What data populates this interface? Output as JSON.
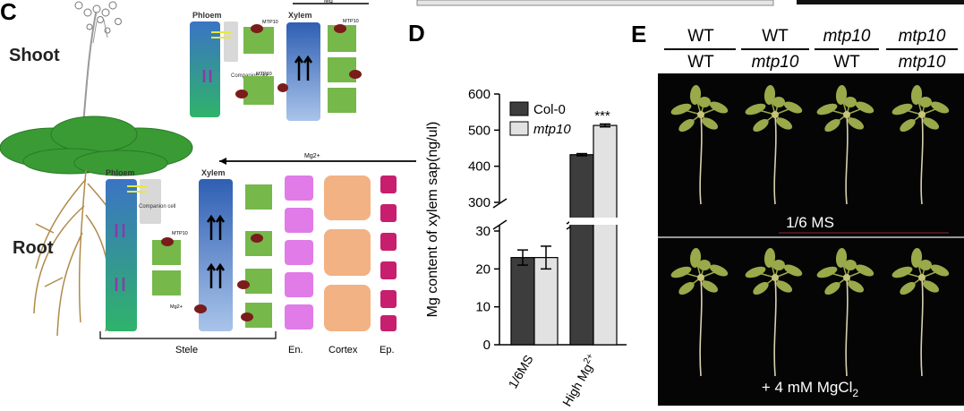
{
  "panel_c": {
    "letter": "C",
    "shoot_label": "Shoot",
    "root_label": "Root",
    "top_mg_label": "Mg",
    "shoot_phloem_label": "Phloem",
    "shoot_xylem_label": "Xylem",
    "shoot_companion_label": "Companion cell",
    "root_mg_label": "Mg2+",
    "root_phloem_label": "Phloem",
    "root_xylem_label": "Xylem",
    "root_companion_label": "Companion cell",
    "mtp10_label": "MTP10",
    "mg2_label": "Mg2+",
    "stele_label": "Stele",
    "en_label": "En.",
    "cortex_label": "Cortex",
    "ep_label": "Ep."
  },
  "panel_d": {
    "letter": "D",
    "significance": "***",
    "x_tick_1": "1/6MS",
    "x_tick_2_base": "High Mg",
    "x_tick_2_sup": "2+"
  },
  "chart_data": {
    "type": "bar",
    "ylabel": "Mg  content of xylem sap(ng/ul)",
    "axis_break": [
      30,
      300
    ],
    "y_ticks_lower": [
      0,
      10,
      20,
      30
    ],
    "y_ticks_upper": [
      300,
      400,
      500,
      600
    ],
    "categories": [
      "1/6MS",
      "High Mg2+"
    ],
    "series": [
      {
        "name": "Col-0",
        "values": [
          23,
          432
        ],
        "errors": [
          2,
          3
        ],
        "color": "#3d3d3d"
      },
      {
        "name": "mtp10",
        "values": [
          23,
          513
        ],
        "errors": [
          3,
          4
        ],
        "color": "#e2e2e2"
      }
    ],
    "legend_position": "top-left",
    "annotation": "***"
  },
  "panel_e": {
    "letter": "E",
    "genotypes": [
      {
        "top": "WT",
        "bottom": "WT"
      },
      {
        "top": "WT",
        "bottom": "mtp10"
      },
      {
        "top": "mtp10",
        "bottom": "WT"
      },
      {
        "top": "mtp10",
        "bottom": "mtp10"
      }
    ],
    "condition_1": "1/6 MS",
    "condition_2_base": "+ 4 mM MgCl",
    "condition_2_sub": "2",
    "background": "#050505",
    "plant_color": "#9aa94a"
  }
}
